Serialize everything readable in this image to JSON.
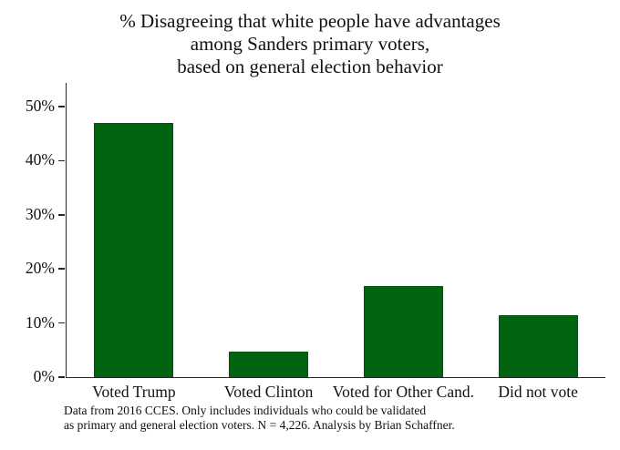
{
  "chart_data": {
    "type": "bar",
    "title": "% Disagreeing that white people have advantages\namong Sanders primary voters,\nbased on general election behavior",
    "categories": [
      "Voted Trump",
      "Voted Clinton",
      "Voted for Other Cand.",
      "Did not vote"
    ],
    "values": [
      47,
      4.8,
      16.8,
      11.5
    ],
    "xlabel": "",
    "ylabel": "",
    "ylim": [
      0,
      50
    ],
    "yticks": [
      0,
      10,
      20,
      30,
      40,
      50
    ],
    "ytick_suffix": "%",
    "grid": false,
    "legend": false,
    "note": "Data from 2016 CCES. Only includes individuals who could be validated\nas primary and general election voters. N = 4,226. Analysis by Brian Schaffner."
  },
  "colors": {
    "bar_fill": "#006410",
    "axis": "#262626",
    "text": "#111111",
    "background": "#ffffff"
  }
}
